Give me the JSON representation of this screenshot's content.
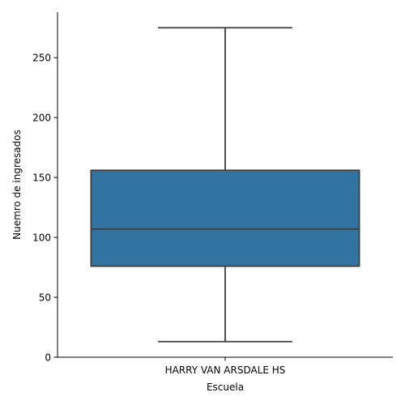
{
  "chart_data": {
    "type": "box",
    "xlabel": "Escuela",
    "ylabel": "Nuemro de ingresados",
    "categories": [
      "HARRY VAN ARSDALE HS"
    ],
    "boxes": [
      {
        "category": "HARRY VAN ARSDALE HS",
        "whisker_low": 13,
        "q1": 76,
        "median": 107,
        "q3": 156,
        "whisker_high": 275
      }
    ],
    "ylim": [
      0,
      288
    ],
    "yticks": [
      0,
      50,
      100,
      150,
      200,
      250
    ],
    "grid": false,
    "colors": {
      "box_fill": "#3274a1",
      "box_edge": "#3d3d3d",
      "axis": "#000000"
    }
  }
}
